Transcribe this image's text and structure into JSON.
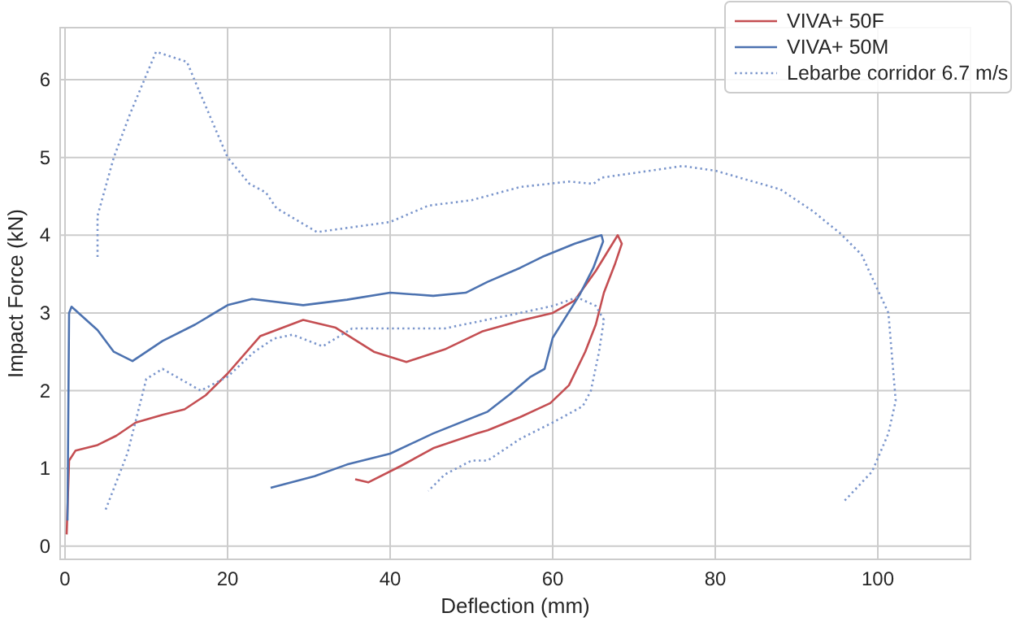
{
  "chart_data": {
    "type": "line",
    "xlabel": "Deflection (mm)",
    "ylabel": "Impact Force (kN)",
    "xlim": [
      -0.6,
      111.4
    ],
    "ylim": [
      -0.17,
      6.67
    ],
    "xticks": [
      0,
      20,
      40,
      60,
      80,
      100
    ],
    "yticks": [
      0,
      1,
      2,
      3,
      4,
      5,
      6
    ],
    "grid": true,
    "legend": "top right",
    "series": [
      {
        "name": "VIVA+ 50F",
        "color": "#c44e52",
        "line_style": "solid",
        "x": [
          0.2,
          0.5,
          1.3,
          4,
          6.3,
          8.7,
          12,
          14.7,
          17.3,
          20,
          24,
          29.3,
          33.3,
          38,
          42,
          46.7,
          51.3,
          56,
          60,
          62.7,
          65.3,
          68,
          68.5,
          67.7,
          66.3,
          65.3,
          64,
          62,
          59.7,
          56,
          52,
          50.7,
          45.3,
          41.3,
          37.3,
          35.7
        ],
        "values": [
          0.15,
          1.1,
          1.23,
          1.3,
          1.42,
          1.59,
          1.69,
          1.76,
          1.94,
          2.22,
          2.7,
          2.91,
          2.81,
          2.5,
          2.37,
          2.53,
          2.76,
          2.9,
          3.0,
          3.16,
          3.54,
          4.0,
          3.89,
          3.64,
          3.26,
          2.85,
          2.5,
          2.07,
          1.84,
          1.66,
          1.49,
          1.45,
          1.26,
          1.03,
          0.82,
          0.86
        ]
      },
      {
        "name": "VIVA+ 50M",
        "color": "#4c72b0",
        "line_style": "solid",
        "x": [
          0.3,
          0.5,
          0.8,
          4,
          6,
          8.3,
          12,
          16,
          20,
          23,
          29.3,
          34.7,
          40,
          45.3,
          49.3,
          52,
          56,
          58.7,
          62.7,
          65.3,
          66,
          66.2,
          65,
          63.3,
          60,
          59,
          57.3,
          54.7,
          52,
          45.3,
          40,
          34.7,
          30.7,
          25.3
        ],
        "values": [
          0.33,
          3.0,
          3.08,
          2.78,
          2.5,
          2.38,
          2.64,
          2.85,
          3.1,
          3.18,
          3.1,
          3.17,
          3.26,
          3.22,
          3.26,
          3.4,
          3.58,
          3.72,
          3.89,
          3.98,
          4.0,
          3.92,
          3.58,
          3.23,
          2.68,
          2.28,
          2.18,
          1.95,
          1.73,
          1.45,
          1.19,
          1.05,
          0.9,
          0.75
        ]
      },
      {
        "name": "Lebarbe corridor 6.7 m/s",
        "color": "#7b96cc",
        "line_style": "dotted",
        "x": [
          4,
          4,
          6,
          8,
          11.2,
          15,
          16,
          20,
          22.7,
          24.7,
          26,
          31,
          40,
          44.7,
          50,
          56,
          62,
          65,
          66,
          72,
          76,
          80,
          88,
          92,
          95.3,
          98,
          101.3,
          102.2,
          101.3,
          99.3,
          95.7
        ],
        "values": [
          3.72,
          4.25,
          5.0,
          5.56,
          6.36,
          6.23,
          5.98,
          5.0,
          4.66,
          4.55,
          4.35,
          4.04,
          4.17,
          4.38,
          4.45,
          4.62,
          4.69,
          4.66,
          4.74,
          4.83,
          4.89,
          4.83,
          4.59,
          4.31,
          4.03,
          3.75,
          3.0,
          1.87,
          1.45,
          0.96,
          0.56
        ]
      },
      {
        "color": "#7b96cc",
        "line_style": "dotted",
        "x": [
          5,
          7.7,
          10,
          12,
          16.7,
          20,
          23.3,
          25.7,
          28,
          31.7,
          35.3,
          40,
          46.7,
          56,
          60,
          63,
          65.3,
          66.3,
          65.7,
          64.7,
          63.7,
          60,
          56,
          52,
          50,
          46.7,
          44.7
        ],
        "values": [
          0.47,
          1.2,
          2.15,
          2.28,
          2.0,
          2.18,
          2.5,
          2.67,
          2.72,
          2.57,
          2.8,
          2.8,
          2.8,
          3.0,
          3.09,
          3.2,
          3.09,
          2.91,
          2.5,
          2.0,
          1.8,
          1.59,
          1.38,
          1.1,
          1.1,
          0.92,
          0.71
        ]
      }
    ]
  }
}
